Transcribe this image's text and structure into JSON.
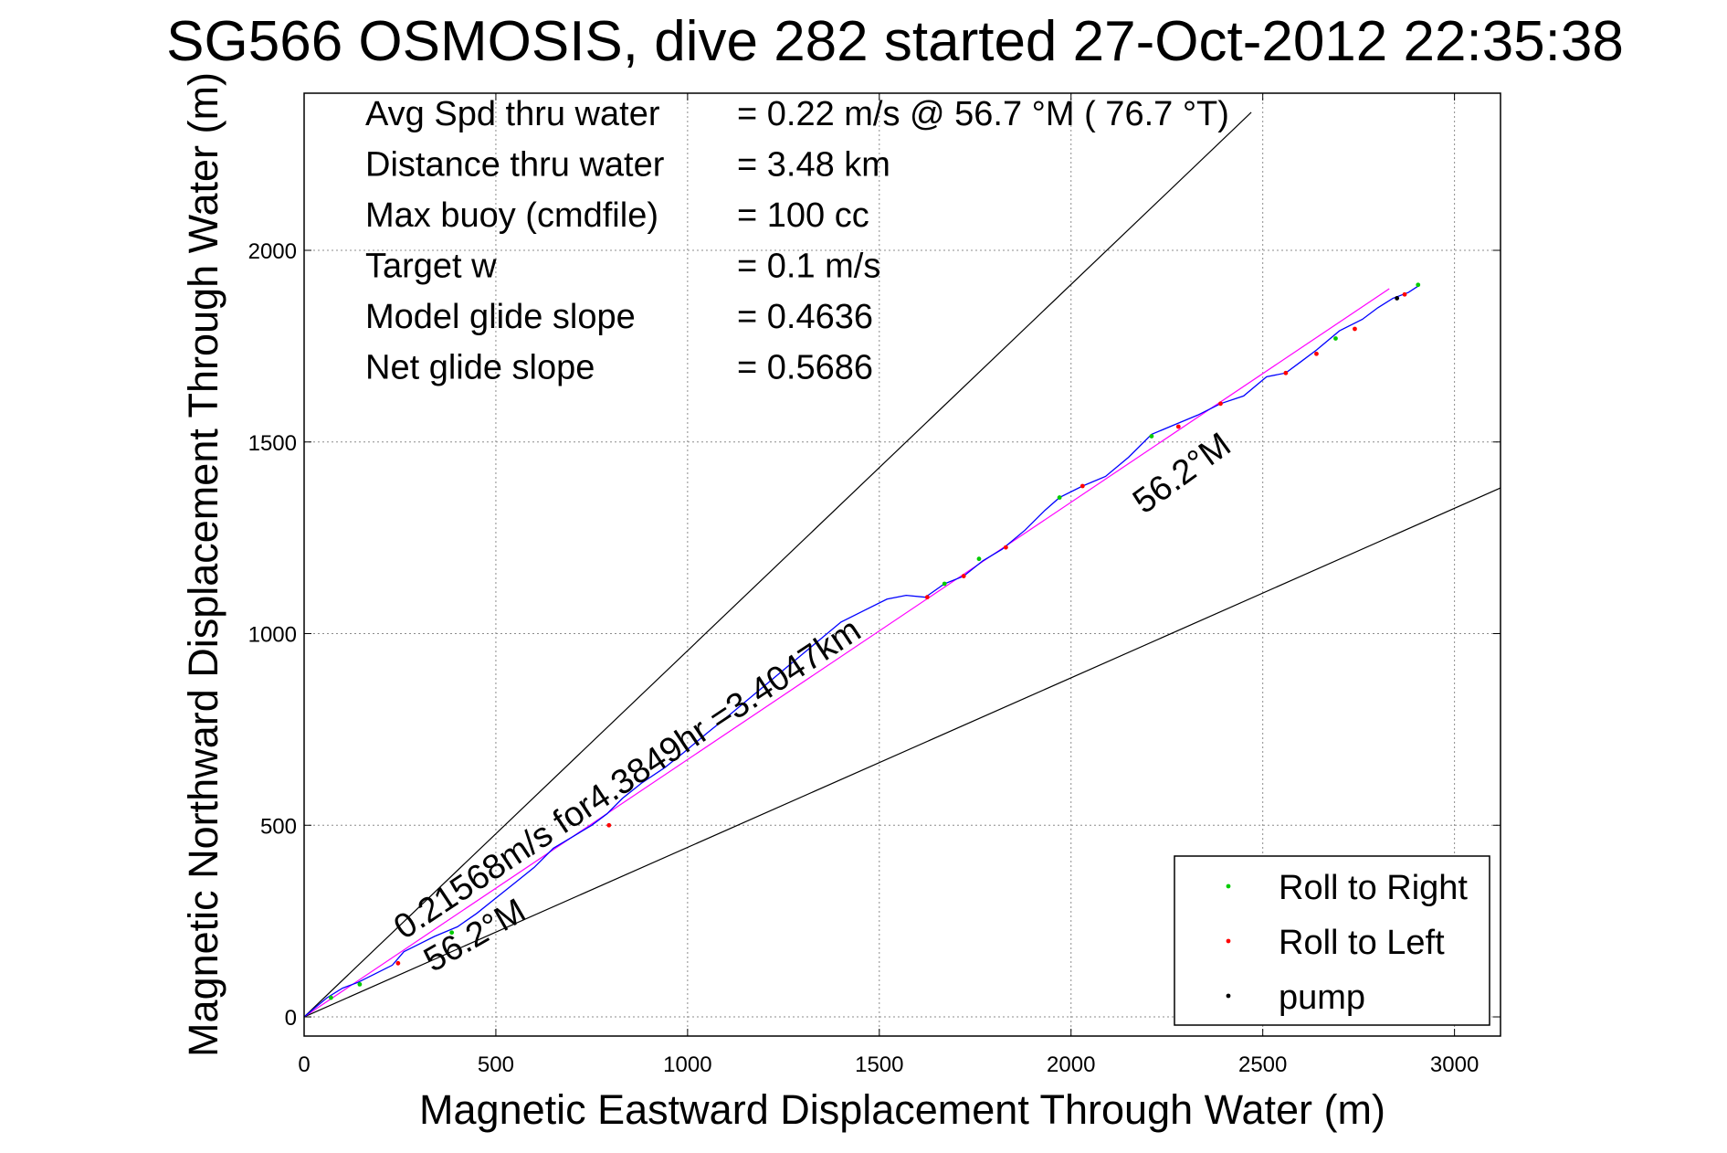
{
  "chart_data": {
    "type": "line",
    "title": "SG566 OSMOSIS, dive 282 started 27-Oct-2012 22:35:38",
    "xlabel": "Magnetic Eastward Displacement Through Water (m)",
    "ylabel": "Magnetic Northward Displacement Through Water (m)",
    "xlim": [
      0,
      3120
    ],
    "ylim": [
      -50,
      2410
    ],
    "grid": true,
    "x_ticks": [
      0,
      500,
      1000,
      1500,
      2000,
      2500,
      3000
    ],
    "y_ticks": [
      0,
      500,
      1000,
      1500,
      2000
    ],
    "x_tick_labels": [
      "0",
      "500",
      "1000",
      "1500",
      "2000",
      "2500",
      "3000"
    ],
    "y_tick_labels": [
      "0",
      "500",
      "1000",
      "1500",
      "2000"
    ],
    "info_lines": [
      {
        "label": "Avg Spd thru water",
        "value": "=  0.22 m/s @  56.7 °M ( 76.7 °T)"
      },
      {
        "label": "Distance thru water",
        "value": "=  3.48 km"
      },
      {
        "label": "Max buoy (cmdfile)",
        "value": "= 100 cc"
      },
      {
        "label": "Target w",
        "value": "= 0.1 m/s"
      },
      {
        "label": "Model glide slope",
        "value": "= 0.4636"
      },
      {
        "label": "Net glide slope",
        "value": "= 0.5686"
      }
    ],
    "annotations": [
      {
        "text": "0.21568m/s for4.3849hr =3.4047km",
        "x": 260,
        "y": 200,
        "angle_deg": 33.5
      },
      {
        "text": "56.2°M",
        "x": 335,
        "y": 115,
        "angle_deg": 30
      },
      {
        "text": "56.2°M",
        "x": 2190,
        "y": 1310,
        "angle_deg": 36
      }
    ],
    "reference_lines": [
      {
        "name": "upper-bound",
        "x": [
          0,
          2470
        ],
        "y": [
          0,
          2360
        ],
        "color": "#000000"
      },
      {
        "name": "lower-bound",
        "x": [
          0,
          3120
        ],
        "y": [
          0,
          1380
        ],
        "color": "#000000"
      },
      {
        "name": "net-track",
        "x": [
          0,
          2830
        ],
        "y": [
          0,
          1900
        ],
        "color": "#ff00ff"
      }
    ],
    "series": [
      {
        "name": "",
        "color": "#0000ff",
        "x": [
          0,
          30,
          60,
          100,
          140,
          180,
          230,
          260,
          300,
          340,
          400,
          450,
          500,
          550,
          600,
          650,
          700,
          750,
          790,
          830,
          880,
          940,
          990,
          1050,
          1100,
          1160,
          1220,
          1280,
          1340,
          1400,
          1460,
          1520,
          1570,
          1620,
          1670,
          1720,
          1770,
          1820,
          1880,
          1930,
          1970,
          2030,
          2090,
          2150,
          2210,
          2270,
          2330,
          2390,
          2450,
          2510,
          2560,
          2600,
          2640,
          2700,
          2760,
          2800,
          2840,
          2880,
          2910
        ],
        "y": [
          0,
          25,
          50,
          75,
          90,
          110,
          135,
          170,
          190,
          210,
          235,
          270,
          310,
          350,
          390,
          440,
          470,
          500,
          530,
          570,
          610,
          650,
          690,
          740,
          780,
          830,
          880,
          930,
          980,
          1030,
          1060,
          1090,
          1100,
          1095,
          1130,
          1150,
          1190,
          1220,
          1270,
          1320,
          1355,
          1385,
          1410,
          1460,
          1520,
          1545,
          1570,
          1600,
          1620,
          1670,
          1680,
          1710,
          1740,
          1790,
          1820,
          1850,
          1875,
          1890,
          1910
        ]
      },
      {
        "name": "Roll to Right",
        "color": "#00cc00",
        "x": [
          70,
          145,
          385,
          1670,
          1760,
          1970,
          2210,
          2690,
          2905
        ],
        "y": [
          50,
          85,
          220,
          1130,
          1195,
          1355,
          1515,
          1770,
          1910
        ]
      },
      {
        "name": "Roll to Left",
        "color": "#ff0000",
        "x": [
          245,
          795,
          1625,
          1720,
          1830,
          2030,
          2280,
          2390,
          2560,
          2640,
          2740,
          2870
        ],
        "y": [
          140,
          500,
          1095,
          1150,
          1225,
          1385,
          1540,
          1600,
          1680,
          1730,
          1795,
          1885
        ]
      },
      {
        "name": "pump",
        "color": "#000000",
        "x": [
          2850
        ],
        "y": [
          1875
        ]
      }
    ],
    "legend": {
      "placement": "bottom-right",
      "entries": [
        {
          "label": "Roll to Right",
          "color": "#00cc00"
        },
        {
          "label": "Roll to Left",
          "color": "#ff0000"
        },
        {
          "label": "pump",
          "color": "#000000"
        }
      ]
    }
  }
}
